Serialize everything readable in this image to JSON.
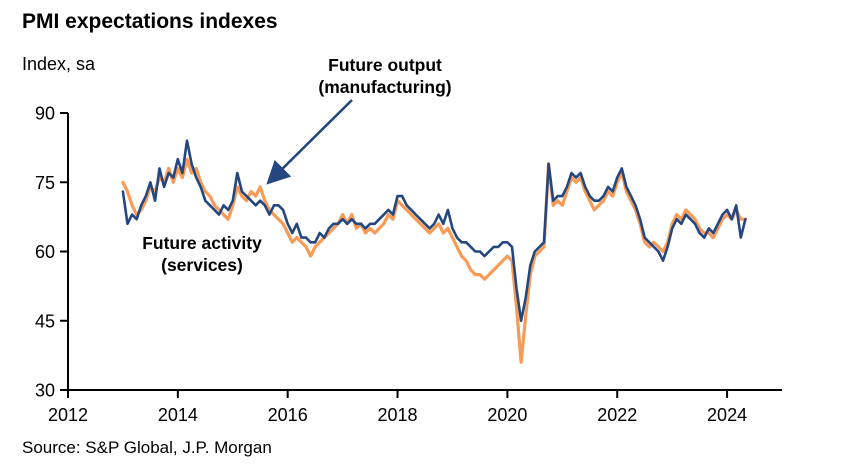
{
  "title": "PMI expectations indexes",
  "unit_label": "Index, sa",
  "source": "Source: S&P Global, J.P. Morgan",
  "annotations": {
    "manufacturing_line1": "Future output",
    "manufacturing_line2": "(manufacturing)",
    "services_line1": "Future activity",
    "services_line2": "(services)"
  },
  "colors": {
    "manufacturing_line": "#24477F",
    "services_line": "#F79B57",
    "axis": "#000000",
    "arrow": "#24477F"
  },
  "chart_data": {
    "type": "line",
    "title": "PMI expectations indexes",
    "ylabel": "Index, sa",
    "xlabel": "",
    "xlim": [
      2012,
      2025
    ],
    "ylim": [
      30,
      90
    ],
    "x_ticks": [
      2012,
      2014,
      2016,
      2018,
      2020,
      2022,
      2024
    ],
    "y_ticks": [
      30,
      45,
      60,
      75,
      90
    ],
    "grid": false,
    "legend": "annotated-labels",
    "x_start_year": 2013.0,
    "x_step": 0.0833333,
    "series": [
      {
        "name": "Future activity (services)",
        "color": "#F79B57",
        "values": [
          75,
          73,
          70,
          68,
          69,
          71,
          74,
          73,
          76,
          75,
          78,
          75,
          78,
          76,
          80,
          77,
          78,
          75,
          73,
          72,
          70,
          69,
          68,
          67,
          70,
          74,
          72,
          71,
          73,
          72,
          74,
          71,
          69,
          68,
          67,
          66,
          64,
          62,
          63,
          62,
          61,
          59,
          61,
          62,
          63,
          64,
          65,
          66,
          68,
          66,
          68,
          65,
          66,
          64,
          65,
          64,
          65,
          66,
          68,
          67,
          71,
          70,
          69,
          68,
          67,
          66,
          65,
          64,
          65,
          66,
          64,
          65,
          63,
          61,
          59,
          58,
          56,
          55,
          55,
          54,
          55,
          56,
          57,
          58,
          59,
          58,
          48,
          36,
          46,
          55,
          59,
          60,
          61,
          79,
          70,
          71,
          70,
          73,
          76,
          75,
          76,
          73,
          71,
          69,
          70,
          71,
          73,
          72,
          75,
          77,
          73,
          71,
          69,
          66,
          62,
          61,
          62,
          61,
          60,
          62,
          66,
          68,
          67,
          69,
          68,
          67,
          65,
          64,
          64,
          63,
          65,
          67,
          68,
          67,
          69,
          67,
          67
        ]
      },
      {
        "name": "Future output (manufacturing)",
        "color": "#24477F",
        "values": [
          73,
          66,
          68,
          67,
          70,
          72,
          75,
          71,
          78,
          74,
          77,
          76,
          80,
          77,
          84,
          79,
          76,
          74,
          71,
          70,
          69,
          68,
          70,
          69,
          71,
          77,
          73,
          72,
          71,
          70,
          71,
          70,
          68,
          70,
          70,
          69,
          66,
          64,
          66,
          63,
          63,
          62,
          62,
          64,
          63,
          65,
          66,
          66,
          67,
          66,
          67,
          66,
          66,
          65,
          66,
          66,
          67,
          68,
          69,
          68,
          72,
          72,
          70,
          69,
          68,
          67,
          66,
          65,
          66,
          68,
          66,
          69,
          65,
          63,
          62,
          62,
          61,
          60,
          60,
          59,
          60,
          61,
          61,
          62,
          62,
          61,
          52,
          45,
          50,
          57,
          60,
          61,
          62,
          79,
          71,
          72,
          72,
          74,
          77,
          76,
          77,
          74,
          72,
          71,
          71,
          72,
          74,
          73,
          76,
          78,
          74,
          72,
          70,
          67,
          63,
          62,
          61,
          60,
          58,
          61,
          65,
          67,
          66,
          68,
          67,
          66,
          64,
          63,
          65,
          64,
          66,
          68,
          69,
          67,
          70,
          63,
          67
        ]
      }
    ]
  }
}
